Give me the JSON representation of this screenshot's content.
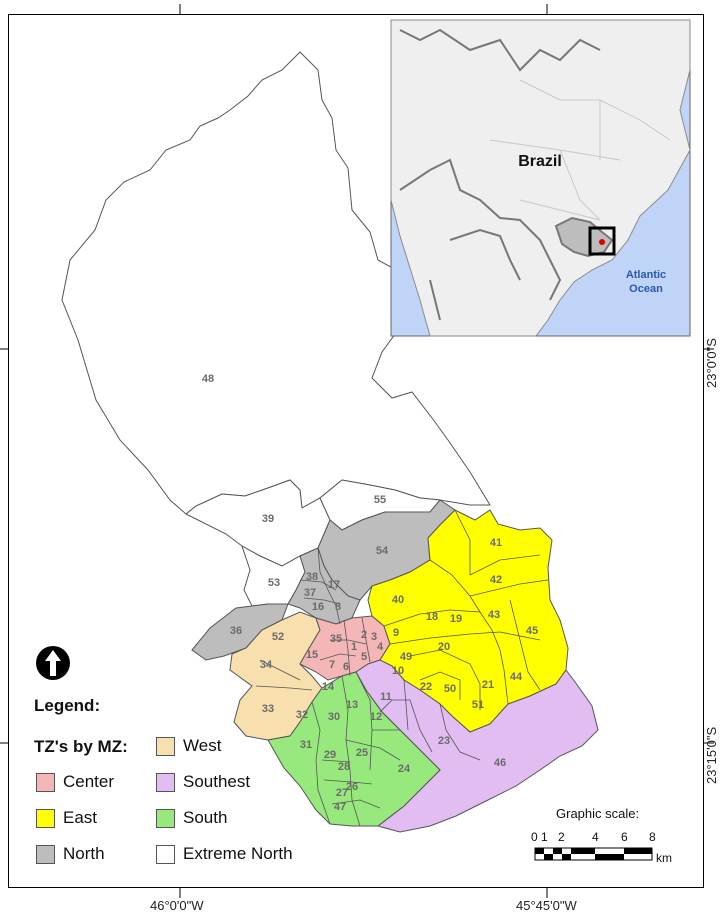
{
  "map": {
    "country_label": "Brazil",
    "ocean_label": "Atlantic\nOcean",
    "coords": {
      "bottom_left": "46°0'0\"W",
      "bottom_right": "45°45'0\"W",
      "right_top": "23°0'0\"S",
      "right_bottom": "23°15'0\"S"
    },
    "zones": [
      "1",
      "2",
      "3",
      "4",
      "5",
      "6",
      "7",
      "8",
      "9",
      "10",
      "11",
      "12",
      "13",
      "14",
      "15",
      "16",
      "17",
      "18",
      "19",
      "20",
      "21",
      "22",
      "23",
      "24",
      "25",
      "26",
      "27",
      "28",
      "29",
      "30",
      "31",
      "32",
      "33",
      "34",
      "35",
      "36",
      "37",
      "38",
      "39",
      "40",
      "41",
      "42",
      "43",
      "44",
      "45",
      "46",
      "47",
      "48",
      "49",
      "50",
      "51",
      "52",
      "53",
      "54",
      "55"
    ]
  },
  "legend": {
    "title": "Legend:",
    "heading": "TZ's by MZ:",
    "items": [
      {
        "label": "Center",
        "color": "#f4b6b6"
      },
      {
        "label": "East",
        "color": "#ffff00"
      },
      {
        "label": "North",
        "color": "#bdbdbd"
      },
      {
        "label": "West",
        "color": "#f8dfae"
      },
      {
        "label": "Southest",
        "color": "#e2bdf2"
      },
      {
        "label": "South",
        "color": "#98e97d"
      },
      {
        "label": "Extreme North",
        "color": "#ffffff"
      }
    ]
  },
  "scale": {
    "title": "Graphic scale:",
    "ticks": [
      "0",
      "1",
      "2",
      "4",
      "6",
      "8"
    ],
    "unit": "km"
  },
  "colors": {
    "ocean": "#bfd4f7",
    "land": "#efefef",
    "sao_paulo_state": "#bdbdbd",
    "marker": "#e00000"
  }
}
